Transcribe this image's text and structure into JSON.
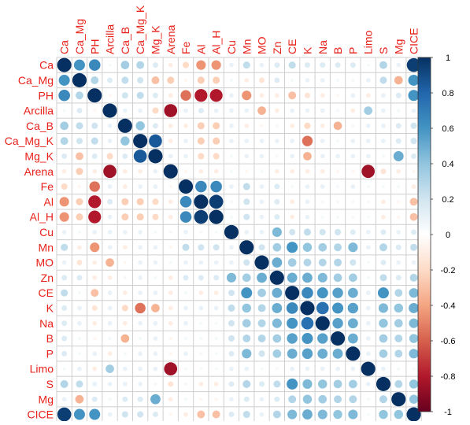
{
  "chart_data": {
    "type": "heatmap",
    "style": "corrplot-circle",
    "variables": [
      "Ca",
      "Ca_Mg",
      "PH",
      "Arcilla",
      "Ca_B",
      "Ca_Mg_K",
      "Mg_K",
      "Arena",
      "Fe",
      "Al",
      "Al_H",
      "Cu",
      "Mn",
      "MO",
      "Zn",
      "CE",
      "K",
      "Na",
      "B",
      "P",
      "Limo",
      "S",
      "Mg",
      "CICE"
    ],
    "label_color": "#e8211a",
    "grid_color": "#cfcfcf",
    "colorbar": {
      "range": [
        -1,
        1
      ],
      "ticks": [
        1,
        0.8,
        0.6,
        0.4,
        0.2,
        0,
        -0.2,
        -0.4,
        -0.6,
        -0.8,
        -1
      ],
      "tick_labels": [
        "1",
        "0.8",
        "0.6",
        "0.4",
        "0.2",
        "0",
        "-0.2",
        "-0.4",
        "-0.6",
        "-0.8",
        "-1"
      ],
      "colors": [
        "#67001f",
        "#b2182b",
        "#d6604d",
        "#f4a582",
        "#fddbc7",
        "#ffffff",
        "#d1e5f0",
        "#92c5de",
        "#4393c3",
        "#2166ac",
        "#053061"
      ]
    },
    "correlations": [
      [
        1,
        0.6,
        0.65,
        0.05,
        0.35,
        0.3,
        0.15,
        -0.1,
        -0.2,
        -0.45,
        -0.45,
        0.1,
        0.25,
        0.1,
        0.15,
        0.25,
        0.15,
        0.15,
        0.15,
        0.15,
        0.05,
        0.3,
        0.1,
        0.95
      ],
      [
        0.6,
        1,
        0.3,
        0.15,
        0.25,
        0.2,
        -0.3,
        -0.25,
        -0.05,
        -0.25,
        -0.25,
        0.05,
        -0.1,
        -0.15,
        0.15,
        0.05,
        0.1,
        0.1,
        0.05,
        0.05,
        0.1,
        0.25,
        -0.35,
        0.6
      ],
      [
        0.65,
        0.3,
        1,
        -0.05,
        0.2,
        0.25,
        0.15,
        -0.1,
        -0.55,
        -0.8,
        -0.8,
        0.1,
        -0.45,
        -0.1,
        -0.1,
        -0.3,
        -0.15,
        -0.1,
        -0.05,
        0.1,
        -0.1,
        0.1,
        0.15,
        0.6
      ],
      [
        0.05,
        0.15,
        -0.05,
        1,
        0.1,
        0.1,
        -0.2,
        -0.85,
        0.1,
        0.15,
        0.1,
        0.1,
        0.1,
        -0.35,
        -0.1,
        0.1,
        0.1,
        0.1,
        0.05,
        -0.1,
        0.35,
        0.1,
        0.05,
        0.1
      ],
      [
        0.35,
        0.25,
        0.2,
        0.1,
        1,
        0.4,
        0.15,
        -0.1,
        -0.1,
        -0.25,
        -0.25,
        0.1,
        -0.1,
        -0.05,
        0.05,
        -0.1,
        -0.2,
        -0.1,
        -0.35,
        0.05,
        0.1,
        0.1,
        0.15,
        0.2
      ],
      [
        0.3,
        0.2,
        0.25,
        0.1,
        0.4,
        1,
        0.85,
        -0.1,
        0.1,
        -0.25,
        -0.25,
        0.1,
        0.1,
        0.1,
        0.1,
        0.1,
        -0.55,
        0.1,
        0.05,
        0.1,
        0.1,
        0.1,
        0.15,
        0.2
      ],
      [
        0.15,
        -0.3,
        0.15,
        -0.2,
        0.15,
        0.85,
        1,
        0.1,
        0.1,
        -0.2,
        -0.2,
        0.05,
        0.1,
        0.1,
        0.05,
        0.1,
        -0.35,
        0.1,
        0.1,
        0.1,
        0.1,
        0.05,
        0.5,
        0.15
      ],
      [
        -0.1,
        -0.25,
        -0.1,
        -0.85,
        -0.1,
        -0.1,
        0.1,
        1,
        -0.05,
        -0.1,
        -0.1,
        0.05,
        -0.05,
        0.05,
        -0.1,
        -0.1,
        -0.1,
        -0.1,
        -0.05,
        -0.05,
        -0.85,
        -0.15,
        -0.1,
        -0.05
      ],
      [
        -0.2,
        -0.05,
        -0.55,
        0.1,
        -0.1,
        0.1,
        0.1,
        -0.05,
        1,
        0.65,
        0.65,
        0.1,
        0.25,
        0.1,
        0.15,
        0.05,
        0.1,
        0.1,
        0.05,
        0.1,
        0.05,
        0.05,
        0.05,
        -0.1
      ],
      [
        -0.45,
        -0.25,
        -0.8,
        0.15,
        -0.25,
        -0.25,
        -0.2,
        -0.1,
        0.65,
        1,
        0.95,
        0.05,
        0.2,
        0.1,
        0.15,
        -0.1,
        0.1,
        0.05,
        0.05,
        0.05,
        0.05,
        -0.1,
        -0.05,
        -0.3
      ],
      [
        -0.45,
        -0.25,
        -0.8,
        0.1,
        -0.25,
        -0.25,
        -0.2,
        -0.1,
        0.65,
        0.95,
        1,
        0.05,
        0.2,
        0.1,
        0.15,
        -0.1,
        0.1,
        0.05,
        0.05,
        0.05,
        0.05,
        -0.1,
        -0.05,
        -0.3
      ],
      [
        0.1,
        0.05,
        0.1,
        0.1,
        0.1,
        0.1,
        0.05,
        0.05,
        0.1,
        0.05,
        0.05,
        1,
        0.1,
        0.1,
        0.45,
        0.2,
        0.25,
        0.2,
        0.2,
        0.15,
        0.1,
        0.15,
        0.1,
        0.15
      ],
      [
        0.25,
        -0.1,
        -0.45,
        0.1,
        -0.1,
        0.1,
        0.1,
        -0.05,
        0.25,
        0.2,
        0.2,
        0.1,
        1,
        0.2,
        0.35,
        0.6,
        0.4,
        0.35,
        0.3,
        0.45,
        0.1,
        0.3,
        0.15,
        0.25
      ],
      [
        0.1,
        -0.15,
        -0.1,
        -0.35,
        -0.05,
        0.1,
        0.1,
        0.05,
        0.1,
        0.1,
        0.1,
        0.1,
        0.2,
        1,
        0.5,
        0.35,
        0.3,
        0.3,
        0.3,
        0.2,
        0.05,
        0.15,
        0.1,
        0.1
      ],
      [
        0.15,
        0.15,
        -0.1,
        -0.1,
        0.05,
        0.1,
        0.05,
        -0.1,
        0.15,
        0.15,
        0.15,
        0.45,
        0.35,
        0.5,
        1,
        0.5,
        0.5,
        0.45,
        0.35,
        0.35,
        0.05,
        0.25,
        0.15,
        0.3
      ],
      [
        0.25,
        0.05,
        -0.3,
        0.1,
        -0.1,
        0.1,
        0.1,
        -0.1,
        0.05,
        -0.1,
        -0.1,
        0.2,
        0.6,
        0.35,
        0.5,
        1,
        0.65,
        0.6,
        0.55,
        0.5,
        0.1,
        0.6,
        0.3,
        0.45
      ],
      [
        0.15,
        0.1,
        -0.15,
        0.1,
        -0.2,
        -0.55,
        -0.35,
        -0.1,
        0.1,
        0.1,
        0.1,
        0.25,
        0.4,
        0.3,
        0.5,
        0.65,
        1,
        0.75,
        0.6,
        0.55,
        0.1,
        0.45,
        0.4,
        0.5
      ],
      [
        0.15,
        0.1,
        -0.1,
        0.1,
        -0.1,
        0.1,
        0.1,
        -0.1,
        0.1,
        0.05,
        0.05,
        0.2,
        0.35,
        0.3,
        0.45,
        0.6,
        0.75,
        1,
        0.55,
        0.5,
        0.1,
        0.4,
        0.35,
        0.45
      ],
      [
        0.15,
        0.05,
        -0.05,
        0.05,
        -0.35,
        0.05,
        0.1,
        -0.05,
        0.05,
        0.05,
        0.05,
        0.2,
        0.3,
        0.3,
        0.35,
        0.55,
        0.6,
        0.55,
        1,
        0.5,
        0.1,
        0.35,
        0.3,
        0.4
      ],
      [
        0.15,
        0.05,
        0.1,
        -0.1,
        0.05,
        0.1,
        0.1,
        -0.05,
        0.1,
        0.05,
        0.05,
        0.15,
        0.45,
        0.2,
        0.35,
        0.5,
        0.55,
        0.5,
        0.5,
        1,
        0.1,
        0.35,
        0.3,
        0.45
      ],
      [
        0.05,
        0.1,
        -0.1,
        0.35,
        0.1,
        0.1,
        0.1,
        -0.85,
        0.05,
        0.05,
        0.05,
        0.1,
        0.1,
        0.05,
        0.05,
        0.1,
        0.1,
        0.1,
        0.1,
        0.1,
        1,
        0.1,
        0.05,
        0.05
      ],
      [
        0.3,
        0.25,
        0.1,
        0.1,
        0.1,
        0.1,
        0.05,
        -0.15,
        0.05,
        -0.1,
        -0.1,
        0.15,
        0.3,
        0.15,
        0.25,
        0.6,
        0.45,
        0.4,
        0.35,
        0.35,
        0.1,
        1,
        0.3,
        0.4
      ],
      [
        0.1,
        -0.35,
        0.15,
        0.05,
        0.15,
        0.15,
        0.5,
        -0.1,
        0.05,
        -0.05,
        -0.05,
        0.1,
        0.15,
        0.1,
        0.15,
        0.3,
        0.4,
        0.35,
        0.3,
        0.3,
        0.05,
        0.3,
        1,
        0.4
      ],
      [
        0.95,
        0.6,
        0.6,
        0.1,
        0.2,
        0.2,
        0.15,
        -0.05,
        -0.1,
        -0.3,
        -0.3,
        0.15,
        0.25,
        0.1,
        0.3,
        0.45,
        0.5,
        0.45,
        0.4,
        0.45,
        0.05,
        0.4,
        0.4,
        1
      ]
    ]
  }
}
